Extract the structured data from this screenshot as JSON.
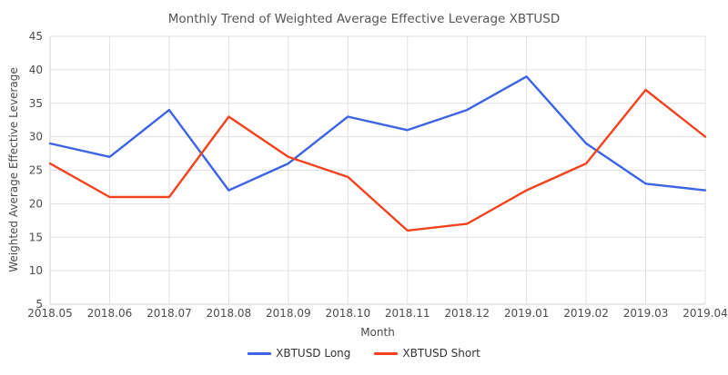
{
  "chart_data": {
    "type": "line",
    "title": "Monthly Trend of Weighted Average Effective Leverage XBTUSD",
    "xlabel": "Month",
    "ylabel": "Weighted Average Effective Leverage",
    "categories": [
      "2018.05",
      "2018.06",
      "2018.07",
      "2018.08",
      "2018.09",
      "2018.10",
      "2018.11",
      "2018.12",
      "2019.01",
      "2019.02",
      "2019.03",
      "2019.04"
    ],
    "series": [
      {
        "name": "XBTUSD Long",
        "color": "#3C64E4",
        "values": [
          29,
          27,
          34,
          22,
          26,
          33,
          31,
          34,
          39,
          29,
          23,
          22
        ]
      },
      {
        "name": "XBTUSD Short",
        "color": "#F2421E",
        "values": [
          26,
          21,
          21,
          33,
          27,
          24,
          16,
          17,
          22,
          26,
          37,
          30
        ]
      }
    ],
    "ylim": [
      5,
      45
    ],
    "yticks": [
      45,
      40,
      35,
      30,
      25,
      20,
      15,
      10,
      5
    ],
    "grid": true,
    "legend_position": "bottom"
  },
  "colors": {
    "background": "#FFFFFF",
    "gridline": "#E0E0E0",
    "axis_line": "#D2D2D2",
    "tick_label": "#4C4C4C",
    "title": "#555555",
    "legend_text": "#333333"
  }
}
